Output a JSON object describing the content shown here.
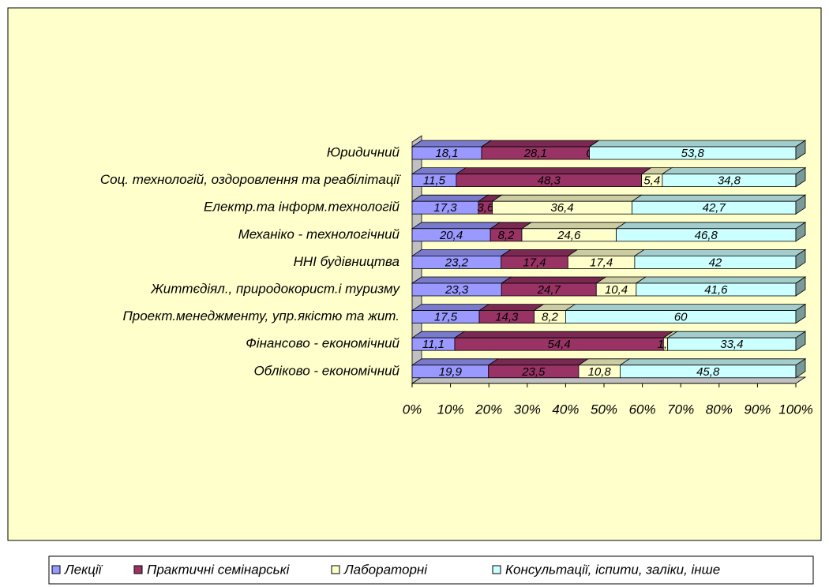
{
  "chart_data": {
    "type": "bar3d_stacked_h",
    "categories": [
      "Юридичний",
      "Соц. технологій, оздоровлення та реабілітації",
      "Електр.та інформ.технологій",
      "Механіко - технологічний",
      "ННІ будівництва",
      "Життєдіял., природокорист.і туризму",
      "Проект.менеджменту, упр.якістю та жит.",
      "Фінансово - економічний",
      "Обліково - економічний"
    ],
    "series": [
      {
        "name": "Лекції",
        "color": "#9999ff",
        "values": [
          18.1,
          11.5,
          17.3,
          20.4,
          23.2,
          23.3,
          17.5,
          11.1,
          19.9
        ],
        "value_labels": [
          "18,1",
          "11,5",
          "17,3",
          "20,4",
          "23,2",
          "23,3",
          "17,5",
          "11,1",
          "19,9"
        ]
      },
      {
        "name": "Практичні семінарські",
        "color": "#993366",
        "values": [
          28.1,
          48.3,
          3.6,
          8.2,
          17.4,
          24.7,
          14.3,
          54.4,
          23.5
        ],
        "value_labels": [
          "28,1",
          "48,3",
          "3,6",
          "8,2",
          "17,4",
          "24,7",
          "14,3",
          "54,4",
          "23,5"
        ]
      },
      {
        "name": "Лабораторні",
        "color": "#ffffcc",
        "values": [
          0,
          5.4,
          36.4,
          24.6,
          17.4,
          10.4,
          8.2,
          1.1,
          10.8
        ],
        "value_labels": [
          "0",
          "5,4",
          "36,4",
          "24,6",
          "17,4",
          "10,4",
          "8,2",
          "1,1",
          "10,8"
        ]
      },
      {
        "name": "Консультації, іспити, заліки, інше",
        "color": "#ccffff",
        "values": [
          53.8,
          34.8,
          42.7,
          46.8,
          42,
          41.6,
          60,
          33.4,
          45.8
        ],
        "value_labels": [
          "53,8",
          "34,8",
          "42,7",
          "46,8",
          "42",
          "41,6",
          "60",
          "33,4",
          "45,8"
        ]
      }
    ],
    "xlim": [
      0,
      100
    ],
    "xticks": [
      {
        "value": 0,
        "label": "0%"
      },
      {
        "value": 10,
        "label": "10%"
      },
      {
        "value": 20,
        "label": "20%"
      },
      {
        "value": 30,
        "label": "30%"
      },
      {
        "value": 40,
        "label": "40%"
      },
      {
        "value": 50,
        "label": "50%"
      },
      {
        "value": 60,
        "label": "60%"
      },
      {
        "value": 70,
        "label": "70%"
      },
      {
        "value": 80,
        "label": "80%"
      },
      {
        "value": 90,
        "label": "90%"
      },
      {
        "value": 100,
        "label": "100%"
      }
    ],
    "plot_background": "#ffffcc"
  }
}
